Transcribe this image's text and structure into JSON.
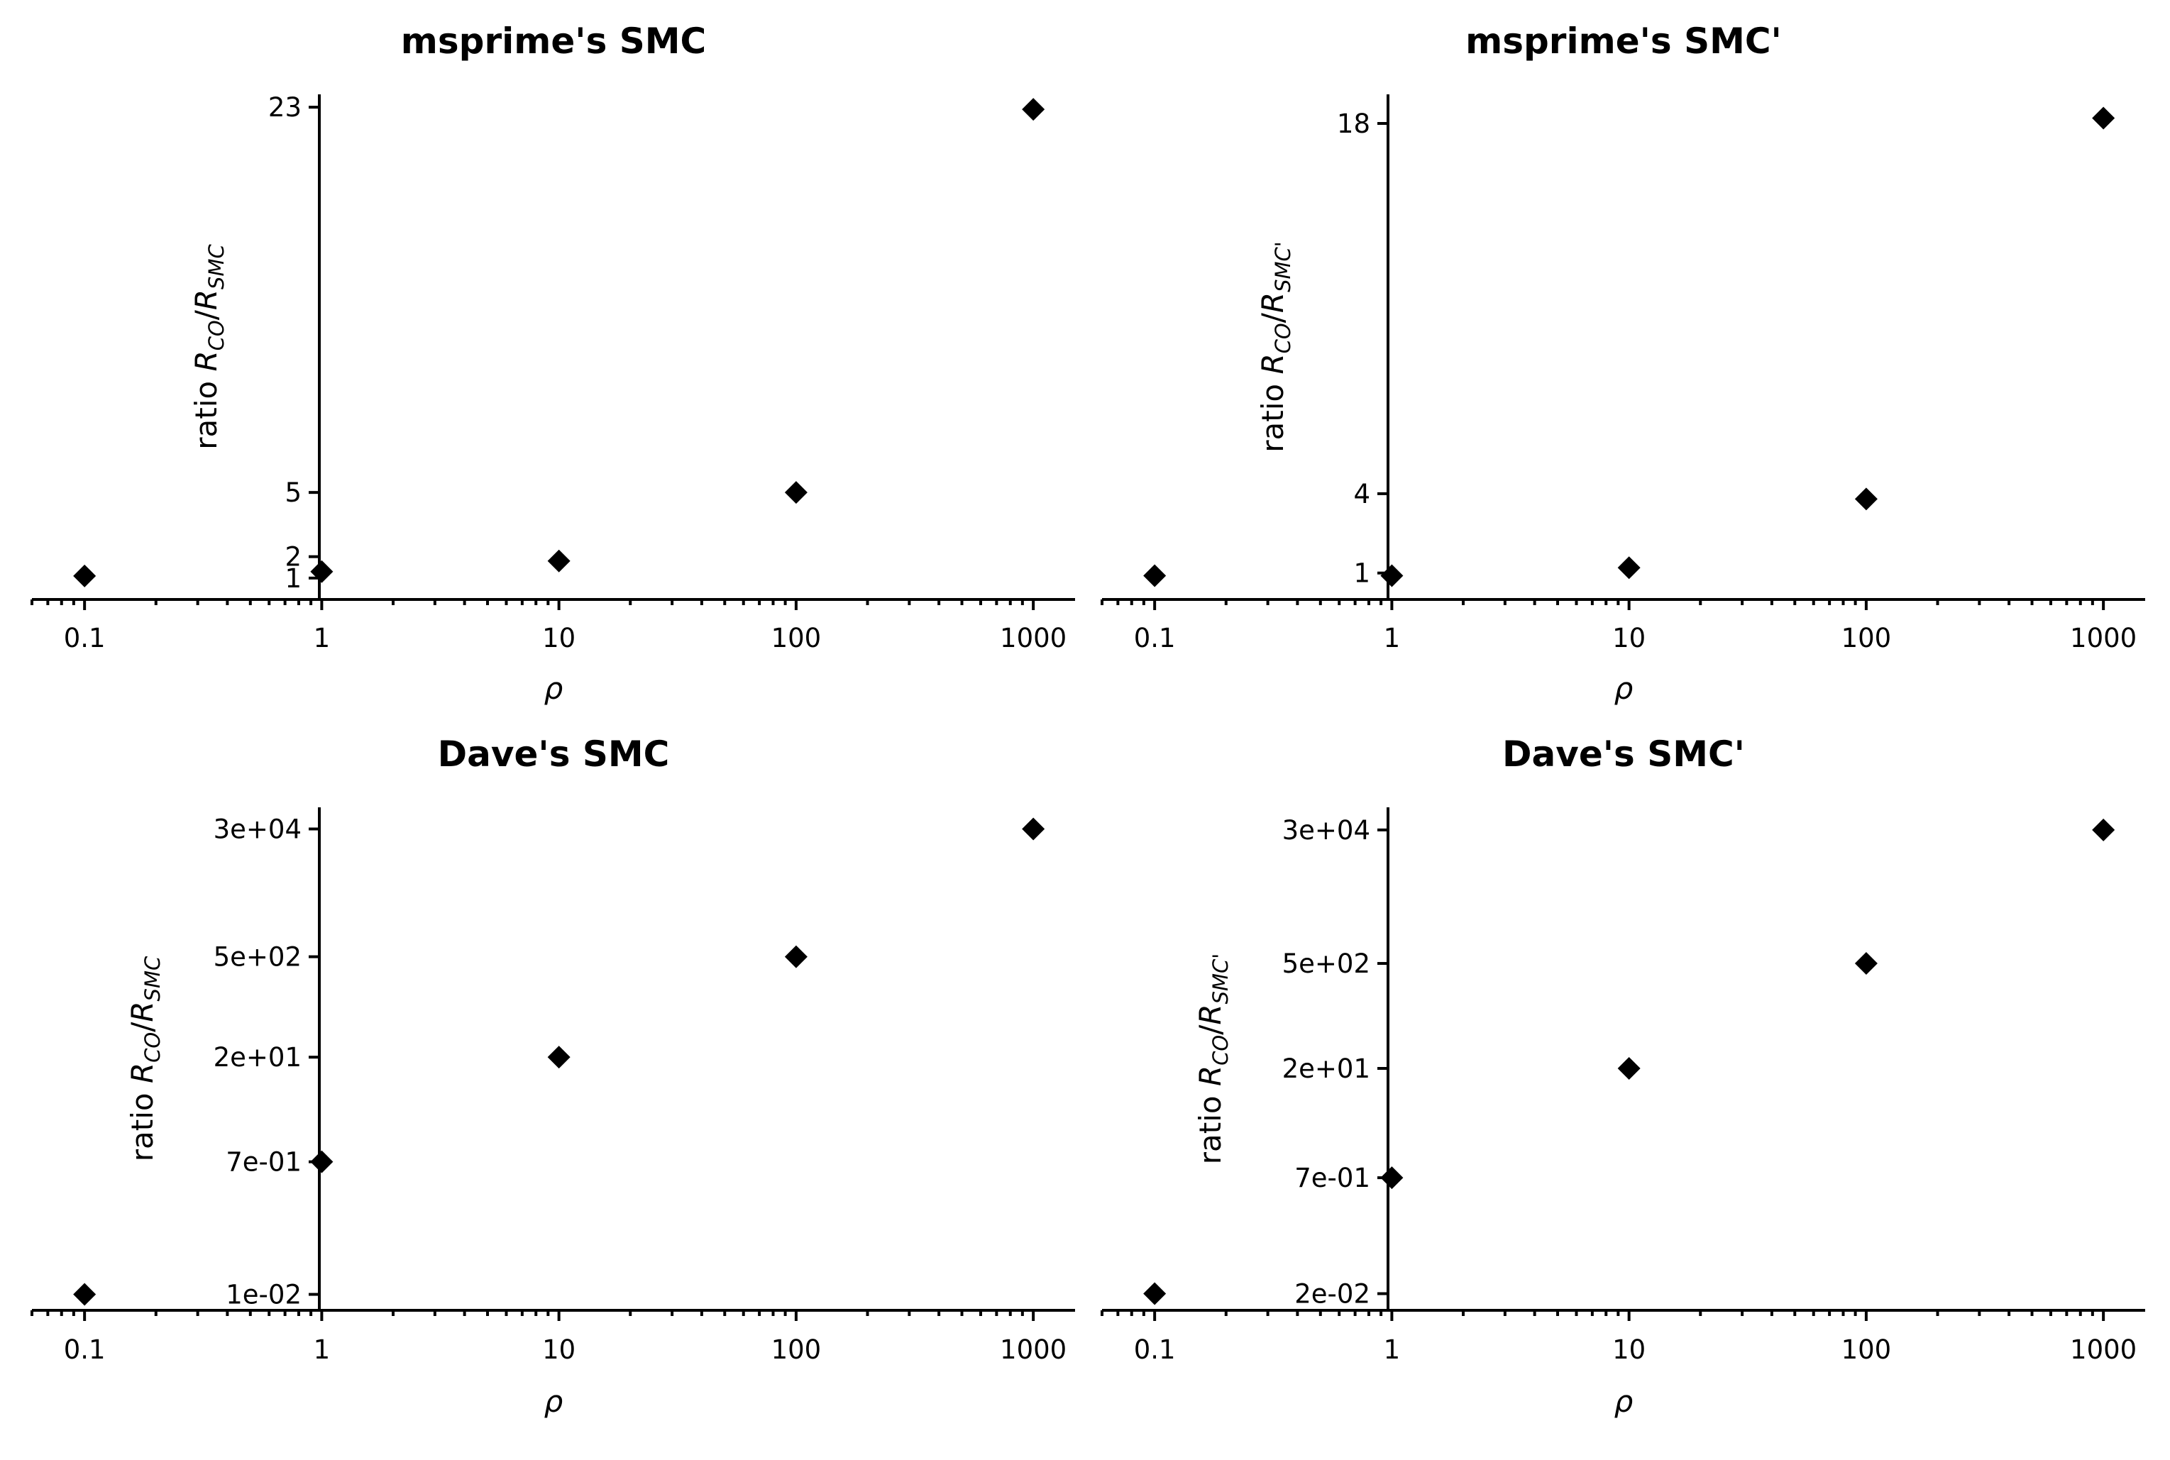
{
  "figure": {
    "title": ""
  },
  "chart_data": [
    {
      "type": "scatter",
      "title": "msprime's SMC",
      "xlabel": "ρ",
      "ylabel_text": "ratio ",
      "ylabel_math": {
        "R1": "R",
        "sub1": "CO",
        "slash": "/",
        "R2": "R",
        "sub2": "SMC"
      },
      "xscale": "log",
      "xlim": [
        0.06,
        1500
      ],
      "xticks": [
        0.1,
        1,
        10,
        100,
        1000
      ],
      "xticklabels": [
        "0.1",
        "1",
        "10",
        "100",
        "1000"
      ],
      "yscale": "linear",
      "ylim": [
        0,
        23.6
      ],
      "yticks": [
        1,
        2,
        5,
        23
      ],
      "yticklabels": [
        "1",
        "2",
        "5",
        "23"
      ],
      "x": [
        0.1,
        1,
        10,
        100,
        1000
      ],
      "y": [
        1.1,
        1.3,
        1.8,
        5.0,
        22.9
      ],
      "grid": false,
      "marker": "diamond",
      "color": "#000000"
    },
    {
      "type": "scatter",
      "title": "msprime's SMC'",
      "xlabel": "ρ",
      "ylabel_text": "ratio ",
      "ylabel_math": {
        "R1": "R",
        "sub1": "CO",
        "slash": "/",
        "R2": "R",
        "sub2": "SMC'"
      },
      "xscale": "log",
      "xlim": [
        0.06,
        1500
      ],
      "xticks": [
        0.1,
        1,
        10,
        100,
        1000
      ],
      "xticklabels": [
        "0.1",
        "1",
        "10",
        "100",
        "1000"
      ],
      "yscale": "linear",
      "ylim": [
        0,
        19.1
      ],
      "yticks": [
        1,
        4,
        18
      ],
      "yticklabels": [
        "1",
        "4",
        "18"
      ],
      "x": [
        0.1,
        1,
        10,
        100,
        1000
      ],
      "y": [
        0.9,
        0.9,
        1.2,
        3.8,
        18.2
      ],
      "grid": false,
      "marker": "diamond",
      "color": "#000000"
    },
    {
      "type": "scatter",
      "title": "Dave's SMC",
      "xlabel": "ρ",
      "ylabel_text": "ratio ",
      "ylabel_math": {
        "R1": "R",
        "sub1": "CO",
        "slash": "/",
        "R2": "R",
        "sub2": "SMC"
      },
      "xscale": "log",
      "xlim": [
        0.06,
        1500
      ],
      "xticks": [
        0.1,
        1,
        10,
        100,
        1000
      ],
      "xticklabels": [
        "0.1",
        "1",
        "10",
        "100",
        "1000"
      ],
      "yscale": "log",
      "ylim": [
        0.006,
        60000
      ],
      "yticks": [
        0.01,
        0.7,
        20,
        500,
        30000
      ],
      "yticklabels": [
        "1e-02",
        "7e-01",
        "2e+01",
        "5e+02",
        "3e+04"
      ],
      "x": [
        0.1,
        1,
        10,
        100,
        1000
      ],
      "y": [
        0.01,
        0.7,
        20,
        500,
        30000
      ],
      "grid": false,
      "marker": "diamond",
      "color": "#000000"
    },
    {
      "type": "scatter",
      "title": "Dave's SMC'",
      "xlabel": "ρ",
      "ylabel_text": "ratio ",
      "ylabel_math": {
        "R1": "R",
        "sub1": "CO",
        "slash": "/",
        "R2": "R",
        "sub2": "SMC'"
      },
      "xscale": "log",
      "xlim": [
        0.06,
        1500
      ],
      "xticks": [
        0.1,
        1,
        10,
        100,
        1000
      ],
      "xticklabels": [
        "0.1",
        "1",
        "10",
        "100",
        "1000"
      ],
      "yscale": "log",
      "ylim": [
        0.012,
        60000
      ],
      "yticks": [
        0.02,
        0.7,
        20,
        500,
        30000
      ],
      "yticklabels": [
        "2e-02",
        "7e-01",
        "2e+01",
        "5e+02",
        "3e+04"
      ],
      "x": [
        0.1,
        1,
        10,
        100,
        1000
      ],
      "y": [
        0.02,
        0.7,
        20,
        500,
        30000
      ],
      "grid": false,
      "marker": "diamond",
      "color": "#000000"
    }
  ]
}
